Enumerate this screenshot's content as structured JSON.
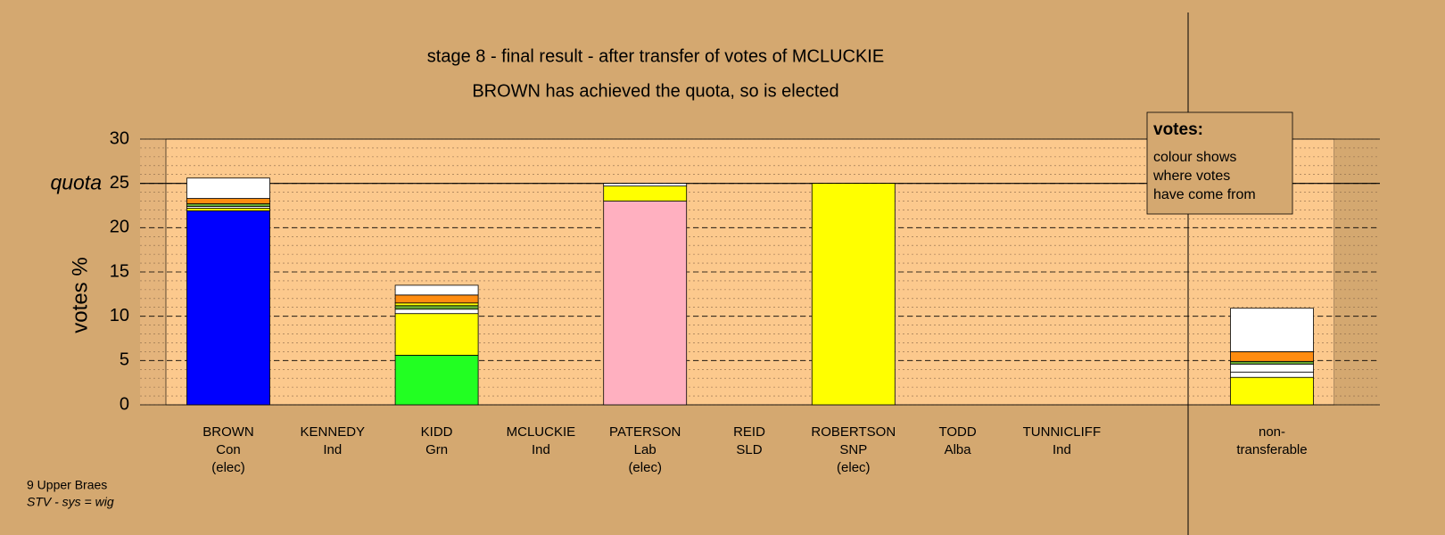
{
  "chart_data": {
    "type": "stacked-bar",
    "title": "stage 8 - final result - after transfer of votes of MCLUCKIE",
    "subtitle": "BROWN has achieved the quota, so is elected",
    "y_label": "votes %",
    "ylim": [
      0,
      30
    ],
    "yticks": [
      0,
      5,
      10,
      15,
      20,
      25,
      30
    ],
    "grid_minor_step": 1,
    "quota": 25,
    "quota_label": "quota",
    "categories": [
      [
        "BROWN",
        "Con",
        "(elec)"
      ],
      [
        "KENNEDY",
        "Ind"
      ],
      [
        "KIDD",
        "Grn"
      ],
      [
        "MCLUCKIE",
        "Ind"
      ],
      [
        "PATERSON",
        "Lab",
        "(elec)"
      ],
      [
        "REID",
        "SLD"
      ],
      [
        "ROBERTSON",
        "SNP",
        "(elec)"
      ],
      [
        "TODD",
        "Alba"
      ],
      [
        "TUNNICLIFF",
        "Ind"
      ],
      [
        "non-",
        "transferable"
      ]
    ],
    "stacks": [
      [
        {
          "color": "#0000ff",
          "value": 21.9
        },
        {
          "color": "#ffff00",
          "value": 0.3
        },
        {
          "color": "#ffffff",
          "value": 0.2
        },
        {
          "color": "#66aa33",
          "value": 0.3
        },
        {
          "color": "#ff8c10",
          "value": 0.6
        },
        {
          "color": "#ffffff",
          "value": 2.3
        }
      ],
      [],
      [
        {
          "color": "#22ff22",
          "value": 5.6
        },
        {
          "color": "#ffff00",
          "value": 4.7
        },
        {
          "color": "#ffffff",
          "value": 0.5
        },
        {
          "color": "#66aa33",
          "value": 0.4
        },
        {
          "color": "#ffff00",
          "value": 0.3
        },
        {
          "color": "#ff8c10",
          "value": 0.9
        },
        {
          "color": "#ffffff",
          "value": 1.1
        }
      ],
      [],
      [
        {
          "color": "#ffb0c0",
          "value": 23.0
        },
        {
          "color": "#ffff00",
          "value": 1.7
        },
        {
          "color": "#ffffff",
          "value": 0.3
        }
      ],
      [],
      [
        {
          "color": "#ffff00",
          "value": 25.0
        }
      ],
      [],
      [],
      [
        {
          "color": "#ffff00",
          "value": 3.1
        },
        {
          "color": "#ffffff",
          "value": 0.6
        },
        {
          "color": "#ffffff",
          "value": 0.9
        },
        {
          "color": "#66aa33",
          "value": 0.3
        },
        {
          "color": "#ff8c10",
          "value": 1.1
        },
        {
          "color": "#ffffff",
          "value": 4.9
        }
      ]
    ],
    "legend": {
      "title": "votes:",
      "lines": [
        "colour shows",
        "where votes",
        "have come from"
      ]
    },
    "footer": [
      "9 Upper Braes",
      "STV - sys = wig"
    ]
  }
}
